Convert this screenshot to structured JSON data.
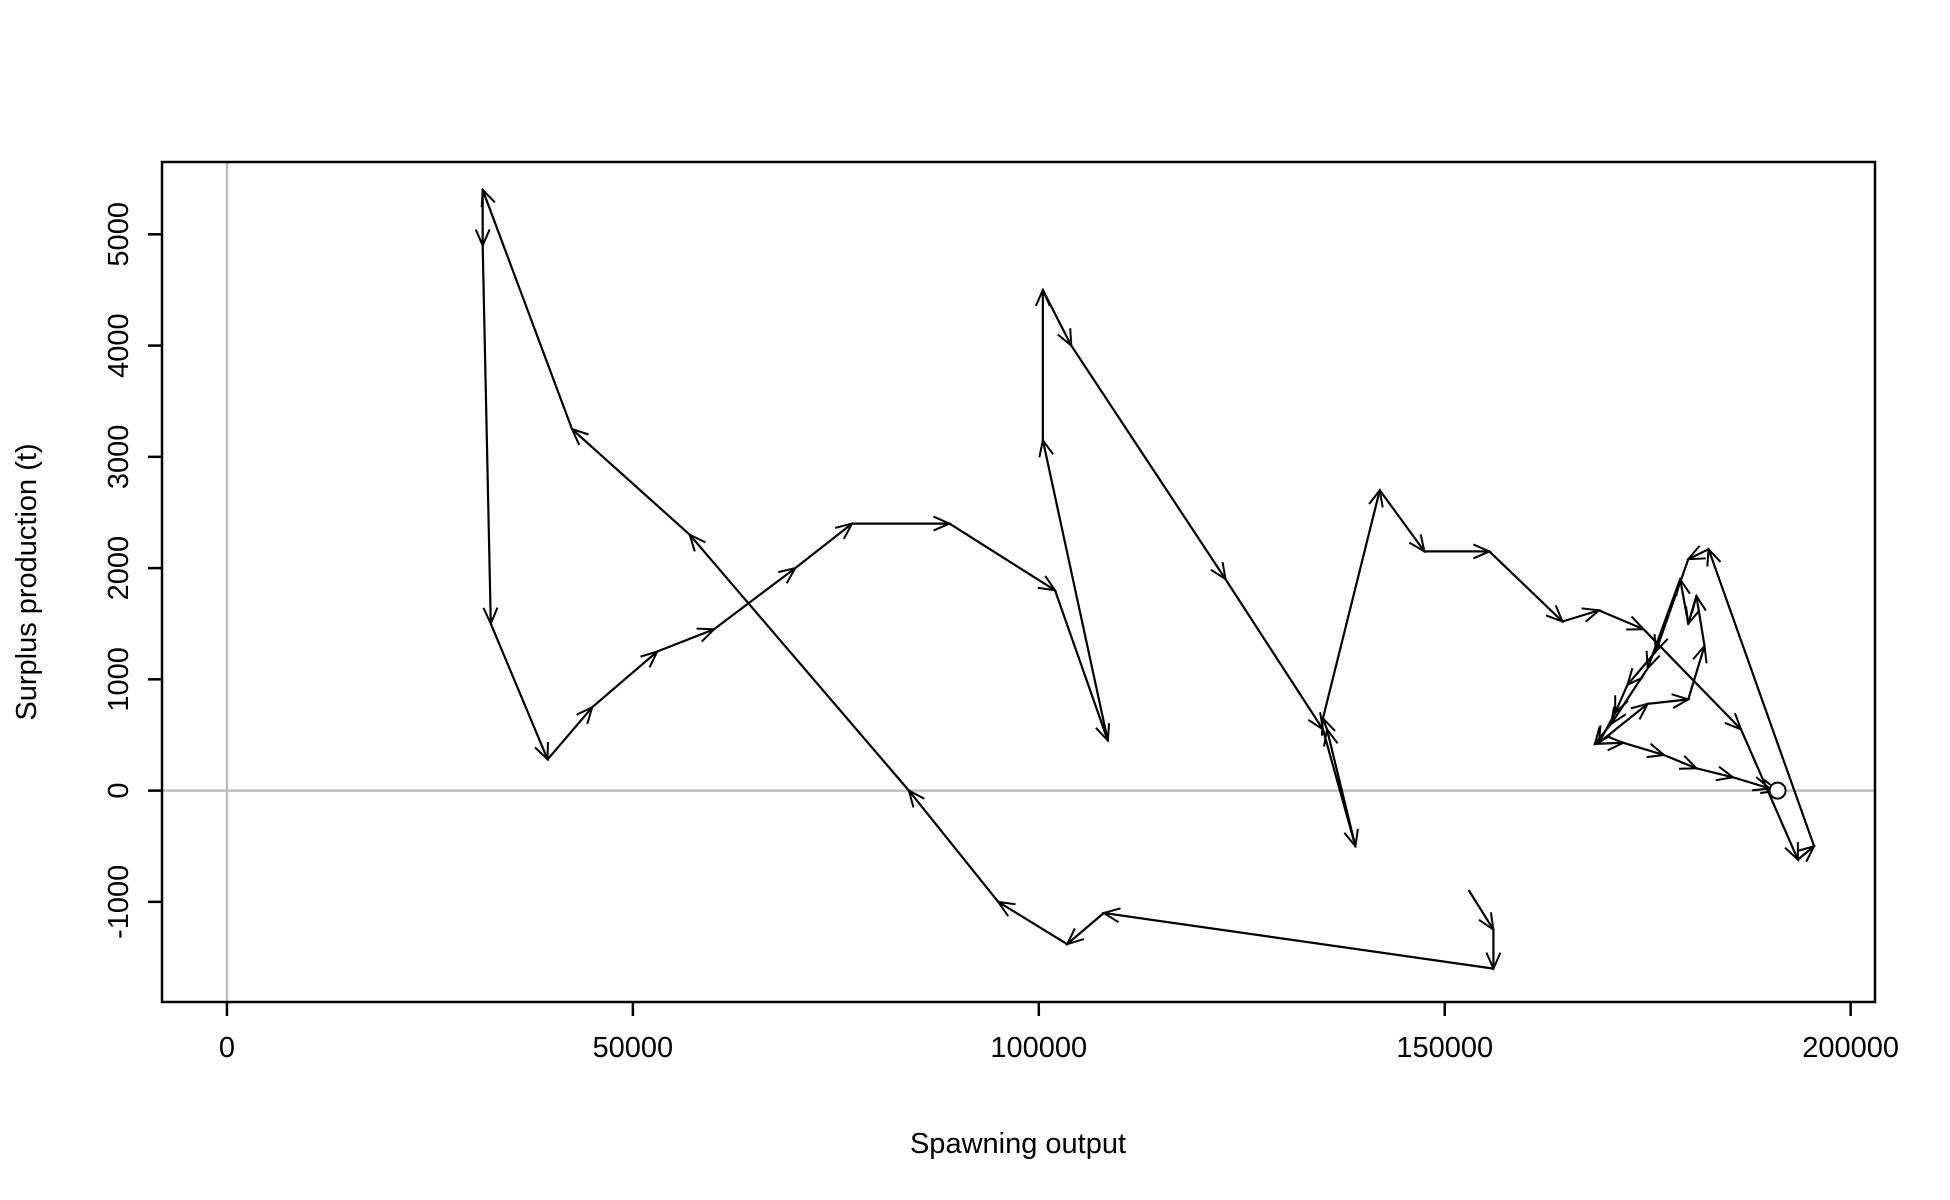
{
  "chart_data": {
    "type": "line",
    "title": "",
    "xlabel": "Spawning output",
    "ylabel": "Surplus production (t)",
    "xlim": [
      -8000,
      203000
    ],
    "ylim": [
      -1900,
      5650
    ],
    "x_ticks": [
      0,
      50000,
      100000,
      150000,
      200000
    ],
    "x_tick_labels": [
      "0",
      "50000",
      "100000",
      "150000",
      "200000"
    ],
    "y_ticks": [
      -1000,
      0,
      1000,
      2000,
      3000,
      4000,
      5000
    ],
    "y_tick_labels": [
      "-1000",
      "0",
      "1000",
      "2000",
      "3000",
      "4000",
      "5000"
    ],
    "reference_lines": {
      "x": 0,
      "y": 0,
      "color": "#bebebe"
    },
    "line_color": "#000000",
    "arrows": true,
    "end_marker": {
      "x": 191000,
      "y": 0,
      "shape": "open-circle"
    },
    "series": [
      {
        "name": "trajectory",
        "x": [
          153000,
          156000,
          156000,
          108000,
          103500,
          95000,
          84000,
          57000,
          42500,
          31500,
          31500,
          32500,
          39500,
          45000,
          53000,
          60000,
          70000,
          77000,
          89000,
          102000,
          108500,
          100500,
          100500,
          104000,
          123000,
          135000,
          139000,
          135500,
          135000,
          142000,
          147500,
          155500,
          164500,
          169000,
          174500,
          186500,
          193500,
          195500,
          182500,
          180000,
          176000,
          172500,
          171000,
          169000,
          175000,
          180000,
          182000,
          181000,
          180000,
          179000,
          175000,
          170500,
          168500,
          172000,
          177000,
          181000,
          185500,
          190000,
          191000
        ],
        "y": [
          -900,
          -1250,
          -1600,
          -1100,
          -1380,
          -1000,
          0,
          2300,
          3250,
          5400,
          4900,
          1500,
          280,
          750,
          1250,
          1450,
          2000,
          2400,
          2400,
          1800,
          450,
          3150,
          4500,
          4000,
          1900,
          550,
          -500,
          550,
          650,
          2700,
          2150,
          2150,
          1520,
          1620,
          1450,
          550,
          -620,
          -500,
          2170,
          2080,
          1250,
          950,
          700,
          430,
          780,
          820,
          1300,
          1750,
          1500,
          1900,
          1100,
          600,
          420,
          430,
          320,
          200,
          120,
          20,
          0
        ]
      }
    ]
  }
}
